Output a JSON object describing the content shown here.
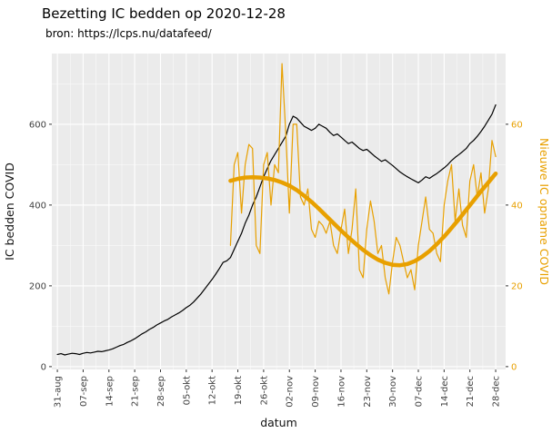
{
  "title": "Bezetting IC bedden op 2020-12-28",
  "subtitle": "bron: https://lcps.nu/datafeed/",
  "chart_data": {
    "type": "line",
    "title": "Bezetting IC bedden op 2020-12-28",
    "subtitle": "bron: https://lcps.nu/datafeed/",
    "colors": {
      "accent": "#E8A000",
      "panel_bg": "#EBEBEB",
      "grid": "#FFFFFF",
      "tick_text": "#404040",
      "series_black": "#000000"
    },
    "x": {
      "title": "datum",
      "domain": [
        -1.5,
        121.7
      ],
      "tick_days": [
        0,
        7,
        14,
        21,
        28,
        35,
        42,
        49,
        56,
        63,
        70,
        77,
        84,
        91,
        98,
        105,
        112,
        119
      ],
      "tick_labels": [
        "31-aug",
        "07-sep",
        "14-sep",
        "21-sep",
        "28-sep",
        "05-okt",
        "12-okt",
        "19-okt",
        "26-okt",
        "02-nov",
        "09-nov",
        "16-nov",
        "23-nov",
        "30-nov",
        "07-dec",
        "14-dec",
        "21-dec",
        "28-dec"
      ],
      "minor_offset": 3.5
    },
    "y_left": {
      "title": "IC bedden COVID",
      "ticks": [
        0,
        200,
        400,
        600
      ],
      "minor_ticks": [
        100,
        300,
        500,
        700
      ],
      "domain": [
        -7,
        775
      ]
    },
    "y_right": {
      "title": "Nieuwe IC opname COVID",
      "ticks": [
        0,
        20,
        40,
        60
      ],
      "factor": 10
    },
    "series": [
      {
        "id": "ic-bedden",
        "name": "IC bedden COVID",
        "axis": "left",
        "color": "#000000",
        "width": 1.2,
        "start_day": 0,
        "step": 1,
        "values": [
          30,
          32,
          29,
          31,
          33,
          32,
          30,
          33,
          35,
          34,
          36,
          38,
          37,
          39,
          41,
          44,
          48,
          52,
          55,
          60,
          64,
          69,
          75,
          81,
          86,
          92,
          97,
          103,
          108,
          113,
          117,
          123,
          128,
          133,
          139,
          146,
          152,
          160,
          170,
          180,
          192,
          204,
          216,
          229,
          243,
          258,
          262,
          270,
          290,
          310,
          330,
          355,
          375,
          400,
          420,
          445,
          470,
          490,
          510,
          525,
          540,
          555,
          570,
          600,
          620,
          615,
          605,
          595,
          590,
          585,
          590,
          600,
          595,
          590,
          580,
          572,
          576,
          568,
          560,
          552,
          556,
          548,
          540,
          535,
          538,
          530,
          522,
          515,
          508,
          512,
          505,
          498,
          490,
          482,
          476,
          470,
          465,
          460,
          455,
          462,
          470,
          466,
          472,
          478,
          485,
          492,
          500,
          510,
          518,
          525,
          532,
          540,
          552,
          560,
          570,
          582,
          595,
          610,
          625,
          648
        ]
      },
      {
        "id": "nieuwe-opnames",
        "name": "Nieuwe IC opname COVID",
        "axis": "right",
        "color": "#E8A000",
        "width": 1.2,
        "start_day": 47,
        "step": 1,
        "values": [
          30,
          50,
          53,
          38,
          50,
          55,
          54,
          30,
          28,
          50,
          53,
          40,
          50,
          48,
          75,
          58,
          38,
          60,
          60,
          42,
          40,
          44,
          34,
          32,
          36,
          35,
          33,
          36,
          30,
          28,
          34,
          39,
          28,
          34,
          44,
          24,
          22,
          34,
          41,
          36,
          28,
          30,
          22,
          18,
          26,
          32,
          30,
          26,
          22,
          24,
          19,
          30,
          36,
          42,
          34,
          33,
          28,
          26,
          40,
          46,
          50,
          36,
          44,
          35,
          32,
          46,
          50,
          42,
          48,
          38,
          44,
          56,
          52
        ]
      },
      {
        "id": "opnames-trend",
        "name": "Nieuwe IC opname COVID (trend)",
        "axis": "right",
        "color": "#E8A000",
        "width": 4.5,
        "start_day": 47,
        "step": 2,
        "values": [
          46.0,
          46.5,
          46.8,
          46.9,
          46.8,
          46.6,
          46.2,
          45.6,
          44.8,
          43.7,
          42.3,
          40.8,
          39.1,
          37.3,
          35.5,
          33.7,
          32.0,
          30.4,
          28.9,
          27.6,
          26.5,
          25.7,
          25.2,
          25.1,
          25.4,
          26.1,
          27.2,
          28.6,
          30.3,
          32.2,
          34.3,
          36.5,
          38.8,
          41.1,
          43.4,
          45.6,
          47.8
        ]
      }
    ]
  }
}
